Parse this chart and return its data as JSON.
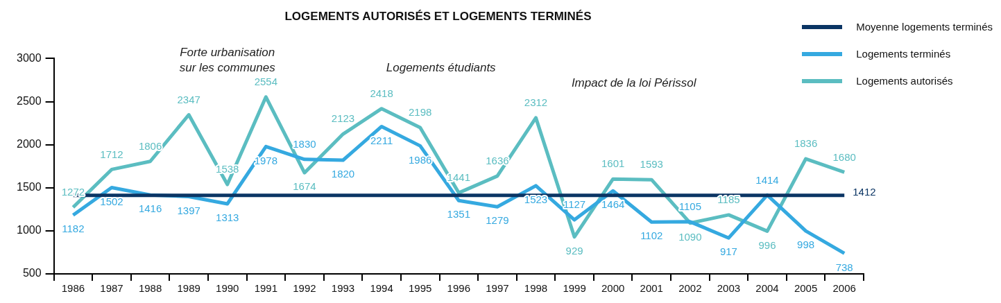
{
  "chart_data": {
    "type": "line",
    "title": "LOGEMENTS AUTORISÉS ET LOGEMENTS TERMINÉS",
    "categories": [
      "1986",
      "1987",
      "1988",
      "1989",
      "1990",
      "1991",
      "1992",
      "1993",
      "1994",
      "1995",
      "1996",
      "1997",
      "1998",
      "1999",
      "2000",
      "2001",
      "2002",
      "2003",
      "2004",
      "2005",
      "2006"
    ],
    "series": [
      {
        "name": "Moyenne logements terminés",
        "color": "#0b3564",
        "values": [
          1412,
          1412,
          1412,
          1412,
          1412,
          1412,
          1412,
          1412,
          1412,
          1412,
          1412,
          1412,
          1412,
          1412,
          1412,
          1412,
          1412,
          1412,
          1412,
          1412,
          1412
        ],
        "value_labels": [
          null,
          null,
          null,
          null,
          null,
          null,
          null,
          null,
          null,
          null,
          null,
          null,
          null,
          null,
          null,
          null,
          null,
          null,
          null,
          null,
          "1412"
        ]
      },
      {
        "name": "Logements terminés",
        "color": "#35a9e0",
        "values": [
          1182,
          1502,
          1416,
          1397,
          1313,
          1978,
          1830,
          1820,
          2211,
          1986,
          1351,
          1279,
          1523,
          1127,
          1464,
          1102,
          1105,
          917,
          1414,
          998,
          738
        ],
        "value_labels": [
          "1182",
          "1502",
          "1416",
          "1397",
          "1313",
          "1978",
          "1830",
          "1820",
          "2211",
          "1986",
          "1351",
          "1279",
          "1523",
          "1127",
          "1464",
          "1102",
          "1105",
          "917",
          "1414",
          "998",
          "738"
        ]
      },
      {
        "name": "Logements autorisés",
        "color": "#5bbdc1",
        "values": [
          1272,
          1712,
          1806,
          2347,
          1538,
          2554,
          1674,
          2123,
          2418,
          2198,
          1441,
          1636,
          2312,
          929,
          1601,
          1593,
          1090,
          1185,
          996,
          1836,
          1680
        ],
        "value_labels": [
          "1272",
          "1712",
          "1806",
          "2347",
          "1538",
          "2554",
          "1674",
          "2123",
          "2418",
          "2198",
          "1441",
          "1636",
          "2312",
          "929",
          "1601",
          "1593",
          "1090",
          "1185",
          "996",
          "1836",
          "1680"
        ]
      }
    ],
    "ylim": [
      500,
      3000
    ],
    "yticks": [
      500,
      1000,
      1500,
      2000,
      2500,
      3000
    ],
    "grid": false,
    "legend": "top right",
    "marker": "none",
    "line_style": "solid",
    "annotations": [
      "Forte urbanisation\nsur les communes",
      "Logements étudiants",
      "Impact de la loi Périssol"
    ]
  }
}
